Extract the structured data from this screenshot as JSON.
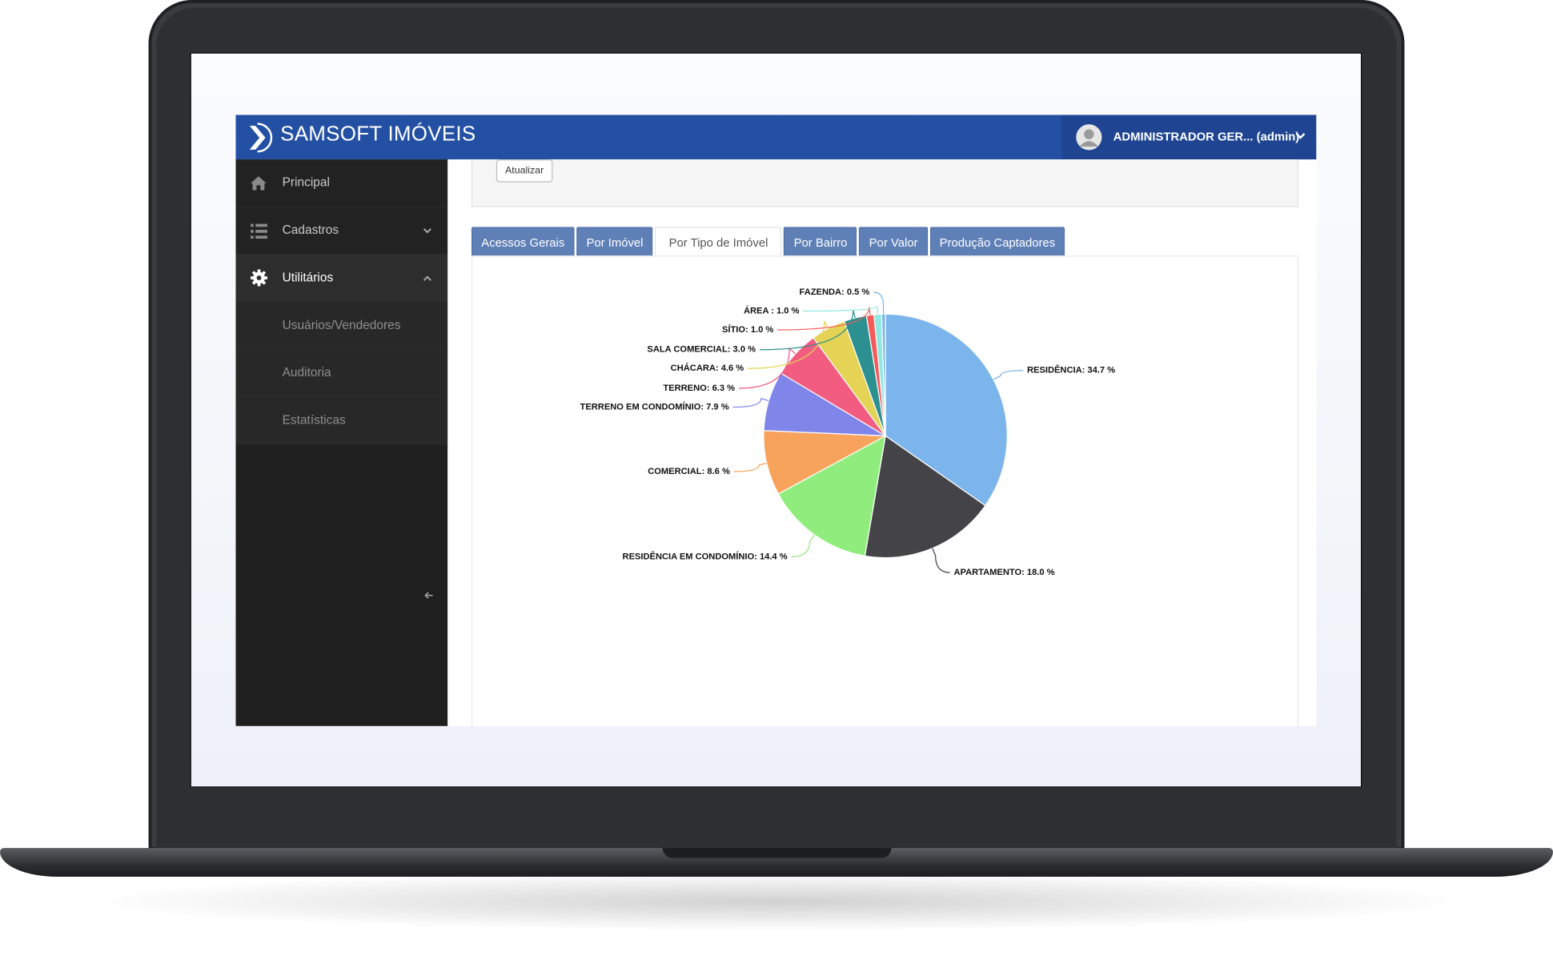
{
  "header": {
    "brand": "SAMSOFT IMÓVEIS",
    "user": "ADMINISTRADOR GER... (admin)"
  },
  "sidebar": {
    "items": [
      "Principal",
      "Cadastros",
      "Utilitários",
      "Usuários/Vendedores",
      "Auditoria",
      "Estatísticas"
    ]
  },
  "filter": {
    "button": "Atualizar"
  },
  "tabs": [
    "Acessos Gerais",
    "Por Imóvel",
    "Por Tipo de Imóvel",
    "Por Bairro",
    "Por Valor",
    "Produção Captadores"
  ],
  "chart_data": {
    "type": "pie",
    "values": [
      34.7,
      18.0,
      14.4,
      8.6,
      7.9,
      6.3,
      4.6,
      3.0,
      1.0,
      1.0,
      0.5
    ],
    "value_labels": [
      "RESIDÊNCIA: 34.7 %",
      "APARTAMENTO: 18.0 %",
      "RESIDÊNCIA EM CONDOMÍNIO: 14.4 %",
      "COMERCIAL: 8.6 %",
      "TERRENO EM CONDOMÍNIO: 7.9 %",
      "TERRENO: 6.3 %",
      "CHÁCARA: 4.6 %",
      "SALA COMERCIAL: 3.0 %",
      "SÍTIO: 1.0 %",
      "ÁREA : 1.0 %",
      "FAZENDA: 0.5 %"
    ],
    "colors": [
      "#7cb5ec",
      "#434348",
      "#90ed7d",
      "#f7a35c",
      "#8085e9",
      "#f15c80",
      "#e4d354",
      "#2b908f",
      "#f45b5b",
      "#91e8e1",
      "#7cb5ec"
    ]
  }
}
